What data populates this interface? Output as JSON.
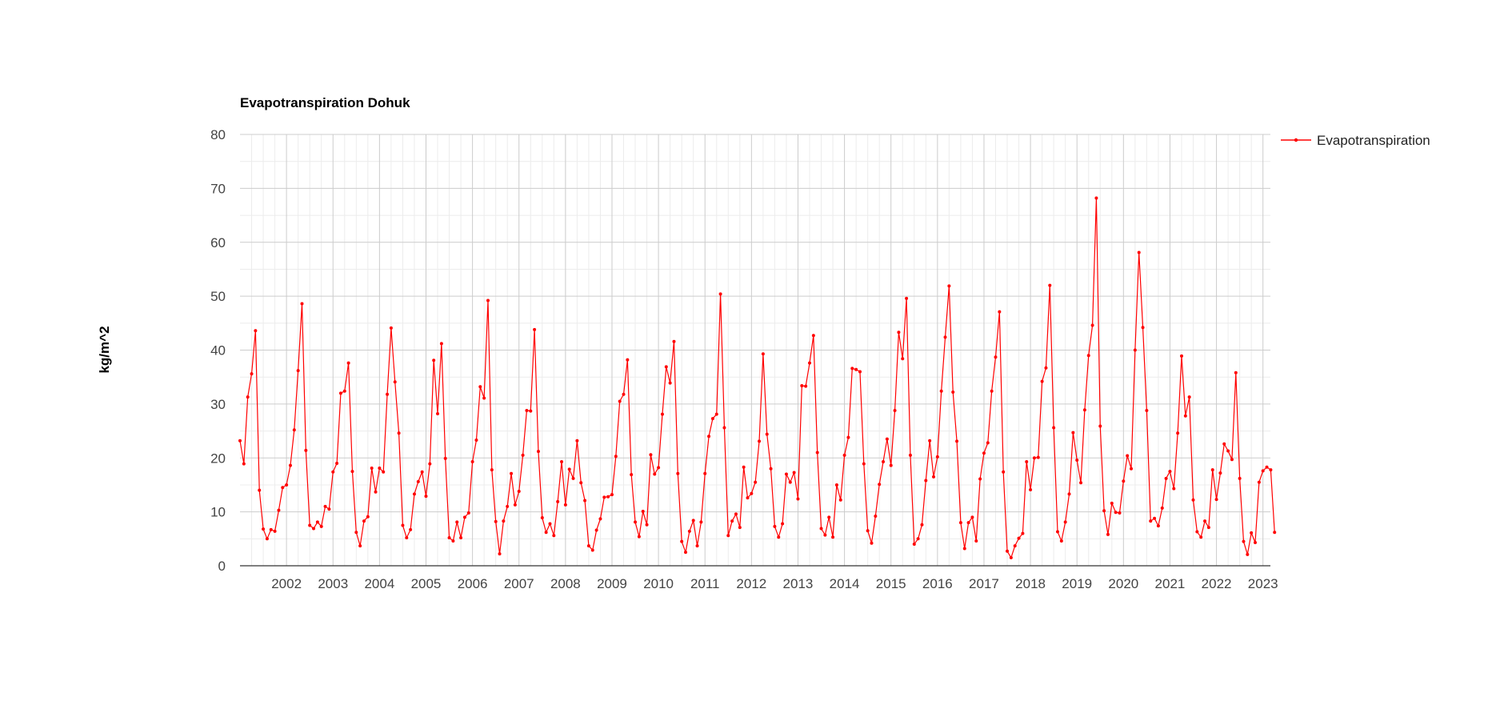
{
  "chart_data": {
    "type": "line",
    "title": "Evapotranspiration Dohuk",
    "xlabel": "",
    "ylabel": "kg/m^2",
    "ylim": [
      0,
      80
    ],
    "y_ticks": [
      "0",
      "10",
      "20",
      "30",
      "40",
      "50",
      "60",
      "70",
      "80"
    ],
    "x_ticks": [
      "2002",
      "2003",
      "2004",
      "2005",
      "2006",
      "2007",
      "2008",
      "2009",
      "2010",
      "2011",
      "2012",
      "2013",
      "2014",
      "2015",
      "2016",
      "2017",
      "2018",
      "2019",
      "2020",
      "2021",
      "2022",
      "2023"
    ],
    "xlim": [
      2001.0,
      2023.16
    ],
    "grid": true,
    "legend_position": "right",
    "series_color": "#ff0000",
    "series": [
      {
        "name": "Evapotranspiration",
        "start": "2001-01",
        "frequency": "monthly",
        "values": [
          23.2,
          18.9,
          31.3,
          35.6,
          43.6,
          14.0,
          6.8,
          5.0,
          6.7,
          6.4,
          10.3,
          14.5,
          15.0,
          18.6,
          25.2,
          36.2,
          48.6,
          21.4,
          7.5,
          6.9,
          8.1,
          7.3,
          11.0,
          10.5,
          17.4,
          19.0,
          32.0,
          32.4,
          37.6,
          17.5,
          6.2,
          3.7,
          8.3,
          9.1,
          18.1,
          13.7,
          18.1,
          17.4,
          31.8,
          44.1,
          34.1,
          24.6,
          7.5,
          5.2,
          6.7,
          13.3,
          15.6,
          17.4,
          12.9,
          18.9,
          38.1,
          28.2,
          41.2,
          19.9,
          5.2,
          4.6,
          8.1,
          5.2,
          9.0,
          9.8,
          19.3,
          23.3,
          33.2,
          31.1,
          49.2,
          17.8,
          8.2,
          2.2,
          8.3,
          11.0,
          17.1,
          11.3,
          13.8,
          20.5,
          28.8,
          28.7,
          43.8,
          21.2,
          8.9,
          6.2,
          7.8,
          5.6,
          11.9,
          19.3,
          11.3,
          17.9,
          16.2,
          23.2,
          15.4,
          12.1,
          3.7,
          2.9,
          6.6,
          8.7,
          12.7,
          12.8,
          13.2,
          20.3,
          30.5,
          31.8,
          38.2,
          16.9,
          8.1,
          5.4,
          10.1,
          7.6,
          20.6,
          17.0,
          18.2,
          28.1,
          36.9,
          33.9,
          41.6,
          17.1,
          4.5,
          2.5,
          6.4,
          8.4,
          3.7,
          8.1,
          17.1,
          24.0,
          27.3,
          28.1,
          50.4,
          25.6,
          5.6,
          8.3,
          9.6,
          7.1,
          18.3,
          12.6,
          13.4,
          15.5,
          23.1,
          39.3,
          24.4,
          18.0,
          7.3,
          5.3,
          7.8,
          17.0,
          15.5,
          17.3,
          12.4,
          33.4,
          33.3,
          37.6,
          42.7,
          21.0,
          6.9,
          5.7,
          9.0,
          5.3,
          15.0,
          12.2,
          20.5,
          23.8,
          36.6,
          36.4,
          36.0,
          18.9,
          6.5,
          4.2,
          9.2,
          15.1,
          19.3,
          23.5,
          18.6,
          28.8,
          43.3,
          38.4,
          49.6,
          20.5,
          4.0,
          5.0,
          7.6,
          15.8,
          23.2,
          16.5,
          20.2,
          32.4,
          42.4,
          51.9,
          32.2,
          23.1,
          8.0,
          3.2,
          8.0,
          9.0,
          4.6,
          16.1,
          20.9,
          22.8,
          32.4,
          38.7,
          47.1,
          17.4,
          2.7,
          1.5,
          3.7,
          5.1,
          6.0,
          19.3,
          14.1,
          20.0,
          20.1,
          34.2,
          36.7,
          52.0,
          25.6,
          6.3,
          4.6,
          8.1,
          13.3,
          24.7,
          19.6,
          15.4,
          28.9,
          39.0,
          44.6,
          68.2,
          25.9,
          10.2,
          5.8,
          11.6,
          9.9,
          9.8,
          15.7,
          20.4,
          18.0,
          40.0,
          58.1,
          44.2,
          28.8,
          8.3,
          8.8,
          7.4,
          10.7,
          16.2,
          17.5,
          14.3,
          24.6,
          38.9,
          27.8,
          31.3,
          12.2,
          6.3,
          5.3,
          8.3,
          7.1,
          17.8,
          12.3,
          17.2,
          22.6,
          21.3,
          19.7,
          35.8,
          16.2,
          4.5,
          2.1,
          6.1,
          4.3,
          15.5,
          17.6,
          18.3,
          17.8,
          6.2
        ]
      }
    ]
  }
}
